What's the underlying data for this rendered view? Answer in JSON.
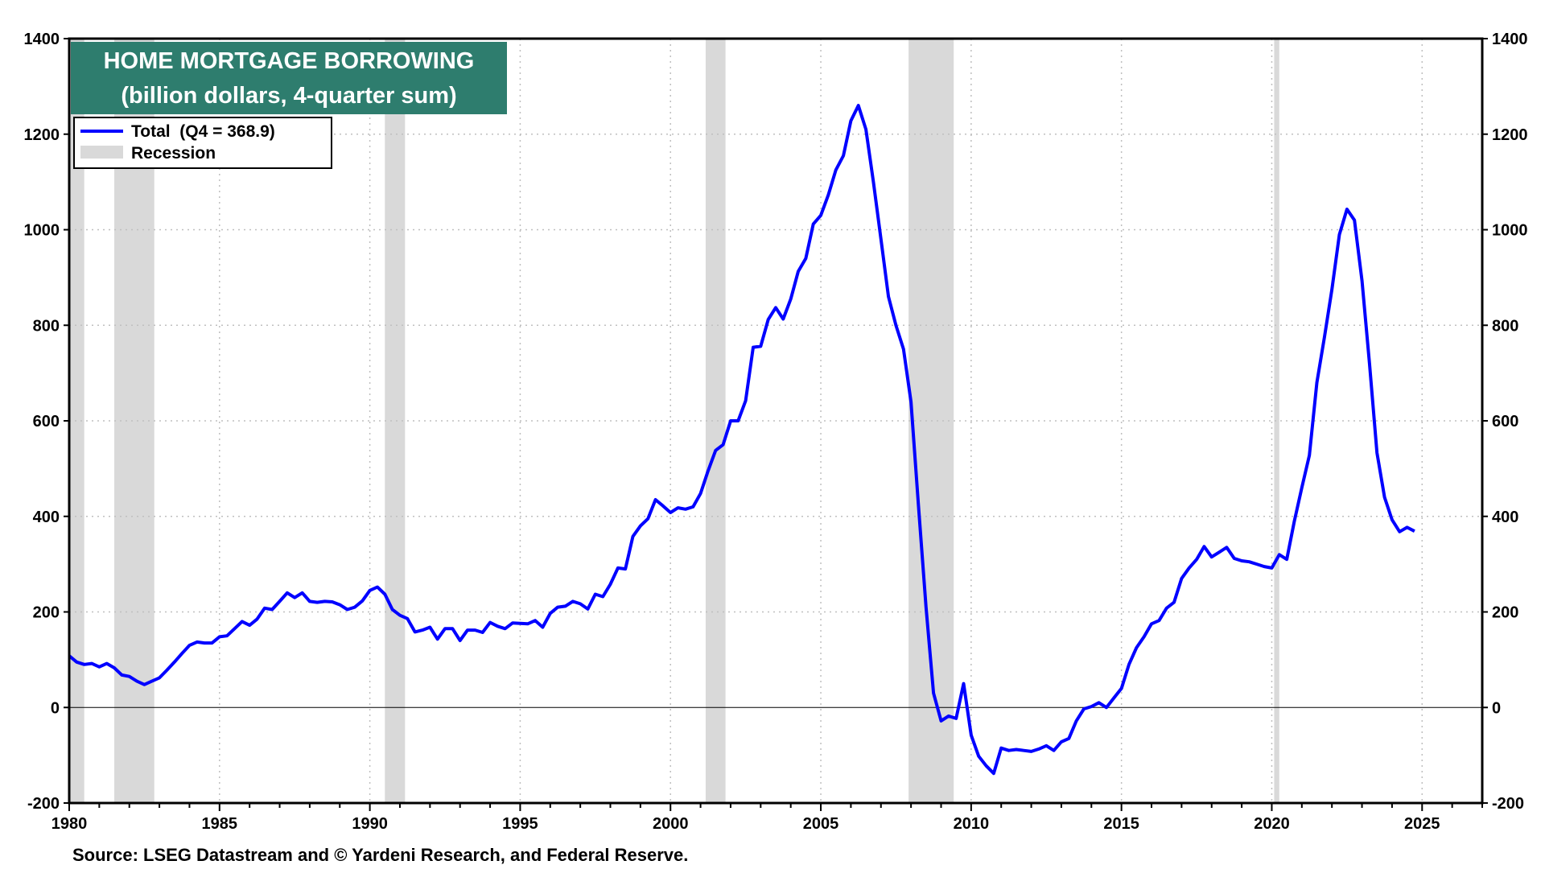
{
  "source": "Source: LSEG Datastream and © Yardeni Research, and Federal Reserve.",
  "colors": {
    "line": "#0000ff",
    "recession": "#d9d9d9",
    "title_bg": "#2e7d6e",
    "title_text": "#ffffff",
    "grid": "#bfbfbf"
  },
  "chart_data": {
    "type": "line",
    "title": "HOME MORTGAGE BORROWING",
    "subtitle": "(billion dollars, 4-quarter sum)",
    "xlabel": "",
    "ylabel": "",
    "xlim": [
      1980,
      2027.0
    ],
    "ylim": [
      -200,
      1400
    ],
    "x_ticks": [
      1980,
      1985,
      1990,
      1995,
      2000,
      2005,
      2010,
      2015,
      2020,
      2025
    ],
    "y_ticks": [
      -200,
      0,
      200,
      400,
      600,
      800,
      1000,
      1200,
      1400
    ],
    "grid": true,
    "dual_y_axis": true,
    "legend": {
      "placement": "top-left",
      "entries": [
        {
          "label": "Total  (Q4 = 368.9)",
          "type": "line"
        },
        {
          "label": "Recession",
          "type": "band"
        }
      ]
    },
    "recessions": [
      [
        1980.0,
        1980.5
      ],
      [
        1981.5,
        1982.83
      ],
      [
        1990.5,
        1991.17
      ],
      [
        2001.17,
        2001.83
      ],
      [
        2007.92,
        2009.42
      ],
      [
        2020.08,
        2020.25
      ]
    ],
    "series": [
      {
        "name": "Total  (Q4 = 368.9)",
        "x": [
          1980.0,
          1980.25,
          1980.5,
          1980.75,
          1981.0,
          1981.25,
          1981.5,
          1981.75,
          1982.0,
          1982.25,
          1982.5,
          1982.75,
          1983.0,
          1983.25,
          1983.5,
          1983.75,
          1984.0,
          1984.25,
          1984.5,
          1984.75,
          1985.0,
          1985.25,
          1985.5,
          1985.75,
          1986.0,
          1986.25,
          1986.5,
          1986.75,
          1987.0,
          1987.25,
          1987.5,
          1987.75,
          1988.0,
          1988.25,
          1988.5,
          1988.75,
          1989.0,
          1989.25,
          1989.5,
          1989.75,
          1990.0,
          1990.25,
          1990.5,
          1990.75,
          1991.0,
          1991.25,
          1991.5,
          1991.75,
          1992.0,
          1992.25,
          1992.5,
          1992.75,
          1993.0,
          1993.25,
          1993.5,
          1993.75,
          1994.0,
          1994.25,
          1994.5,
          1994.75,
          1995.0,
          1995.25,
          1995.5,
          1995.75,
          1996.0,
          1996.25,
          1996.5,
          1996.75,
          1997.0,
          1997.25,
          1997.5,
          1997.75,
          1998.0,
          1998.25,
          1998.5,
          1998.75,
          1999.0,
          1999.25,
          1999.5,
          1999.75,
          2000.0,
          2000.25,
          2000.5,
          2000.75,
          2001.0,
          2001.25,
          2001.5,
          2001.75,
          2002.0,
          2002.25,
          2002.5,
          2002.75,
          2003.0,
          2003.25,
          2003.5,
          2003.75,
          2004.0,
          2004.25,
          2004.5,
          2004.75,
          2005.0,
          2005.25,
          2005.5,
          2005.75,
          2006.0,
          2006.25,
          2006.5,
          2006.75,
          2007.0,
          2007.25,
          2007.5,
          2007.75,
          2008.0,
          2008.25,
          2008.5,
          2008.75,
          2009.0,
          2009.25,
          2009.5,
          2009.75,
          2010.0,
          2010.25,
          2010.5,
          2010.75,
          2011.0,
          2011.25,
          2011.5,
          2011.75,
          2012.0,
          2012.25,
          2012.5,
          2012.75,
          2013.0,
          2013.25,
          2013.5,
          2013.75,
          2014.0,
          2014.25,
          2014.5,
          2014.75,
          2015.0,
          2015.25,
          2015.5,
          2015.75,
          2016.0,
          2016.25,
          2016.5,
          2016.75,
          2017.0,
          2017.25,
          2017.5,
          2017.75,
          2018.0,
          2018.25,
          2018.5,
          2018.75,
          2019.0,
          2019.25,
          2019.5,
          2019.75,
          2020.0,
          2020.25,
          2020.5,
          2020.75,
          2021.0,
          2021.25,
          2021.5,
          2021.75,
          2022.0,
          2022.25,
          2022.5,
          2022.75,
          2023.0,
          2023.25,
          2023.5,
          2023.75,
          2024.0,
          2024.25,
          2024.5,
          2024.75
        ],
        "values": [
          108,
          95,
          90,
          92,
          85,
          92,
          83,
          68,
          65,
          55,
          48,
          55,
          62,
          78,
          95,
          113,
          130,
          137,
          135,
          135,
          148,
          150,
          165,
          180,
          172,
          185,
          208,
          205,
          222,
          240,
          230,
          240,
          222,
          220,
          222,
          221,
          215,
          205,
          210,
          223,
          245,
          252,
          237,
          205,
          193,
          186,
          158,
          162,
          168,
          143,
          165,
          165,
          140,
          162,
          162,
          157,
          178,
          170,
          165,
          177,
          176,
          175,
          182,
          168,
          197,
          210,
          212,
          222,
          217,
          206,
          237,
          232,
          258,
          292,
          290,
          358,
          380,
          395,
          435,
          422,
          408,
          418,
          415,
          420,
          448,
          495,
          538,
          550,
          600,
          600,
          642,
          754,
          756,
          812,
          837,
          813,
          855,
          913,
          940,
          1012,
          1030,
          1073,
          1125,
          1155,
          1228,
          1260,
          1210,
          1100,
          980,
          860,
          800,
          750,
          640,
          420,
          210,
          30,
          -28,
          -18,
          -23,
          50,
          -58,
          -102,
          -122,
          -138,
          -85,
          -90,
          -88,
          -90,
          -92,
          -87,
          -80,
          -90,
          -72,
          -65,
          -28,
          -3,
          2,
          10,
          0,
          20,
          40,
          90,
          125,
          148,
          175,
          182,
          208,
          220,
          270,
          292,
          310,
          337,
          315,
          325,
          335,
          312,
          307,
          305,
          300,
          295,
          292,
          320,
          310,
          390,
          460,
          528,
          680,
          775,
          875,
          990,
          1043,
          1020,
          893,
          720,
          533,
          440,
          393,
          368,
          377,
          368.9
        ]
      }
    ]
  }
}
